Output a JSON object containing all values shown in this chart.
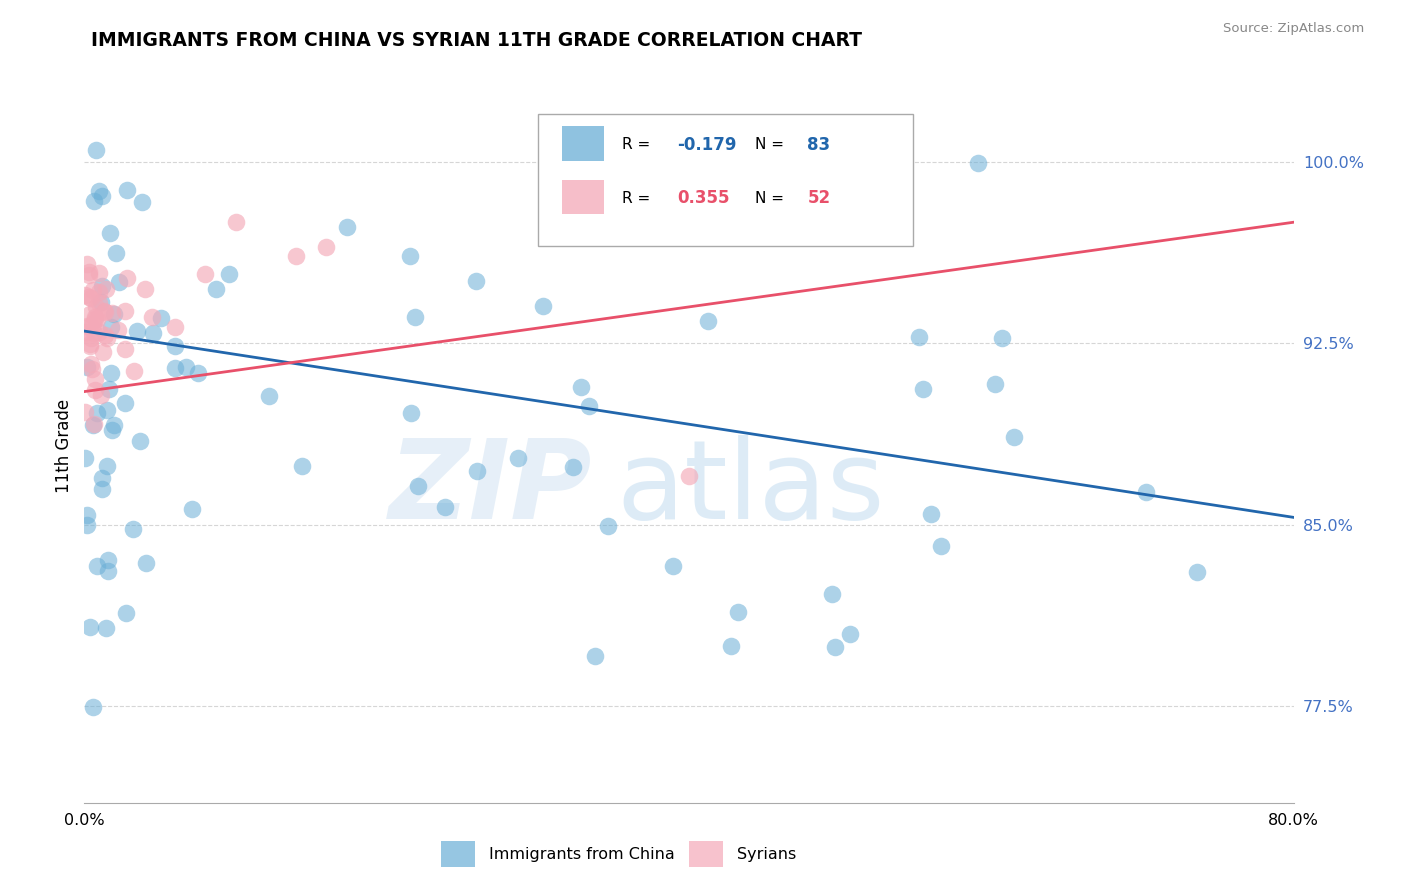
{
  "title": "IMMIGRANTS FROM CHINA VS SYRIAN 11TH GRADE CORRELATION CHART",
  "ylabel": "11th Grade",
  "source_text": "Source: ZipAtlas.com",
  "xmin": 0.0,
  "xmax": 0.8,
  "ymin": 0.735,
  "ymax": 1.03,
  "yticks": [
    0.775,
    0.85,
    0.925,
    1.0
  ],
  "ytick_labels": [
    "77.5%",
    "85.0%",
    "92.5%",
    "100.0%"
  ],
  "blue_R": -0.179,
  "blue_N": 83,
  "pink_R": 0.355,
  "pink_N": 52,
  "blue_color": "#6aaed6",
  "pink_color": "#f4a9b8",
  "blue_line_color": "#2166ac",
  "pink_line_color": "#e8506a",
  "legend_blue_label": "Immigrants from China",
  "legend_pink_label": "Syrians",
  "watermark_zip": "ZIP",
  "watermark_atlas": "atlas",
  "blue_line_x0": 0.0,
  "blue_line_y0": 0.93,
  "blue_line_x1": 0.8,
  "blue_line_y1": 0.853,
  "pink_line_x0": 0.0,
  "pink_line_y0": 0.905,
  "pink_line_x1": 0.8,
  "pink_line_y1": 0.975
}
